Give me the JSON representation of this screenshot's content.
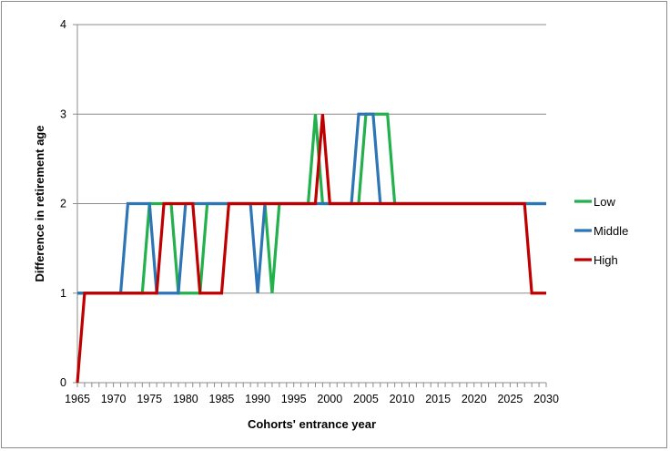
{
  "chart_data": {
    "type": "line",
    "xlabel": "Cohorts' entrance year",
    "ylabel": "Difference in retirement age",
    "xlim": [
      1965,
      2030
    ],
    "ylim": [
      0,
      4
    ],
    "x_ticks": [
      1965,
      1970,
      1975,
      1980,
      1985,
      1990,
      1995,
      2000,
      2005,
      2010,
      2015,
      2020,
      2025,
      2030
    ],
    "y_ticks": [
      0,
      1,
      2,
      3,
      4
    ],
    "grid": "horizontal",
    "legend_position": "right",
    "series": [
      {
        "name": "Low",
        "color": "#22b14c",
        "x": [
          1965,
          1966,
          1967,
          1968,
          1969,
          1970,
          1971,
          1972,
          1973,
          1974,
          1975,
          1976,
          1977,
          1978,
          1979,
          1980,
          1981,
          1982,
          1983,
          1984,
          1985,
          1986,
          1987,
          1988,
          1989,
          1990,
          1991,
          1992,
          1993,
          1994,
          1995,
          1996,
          1997,
          1998,
          1999,
          2000,
          2001,
          2002,
          2003,
          2004,
          2005,
          2006,
          2007,
          2008,
          2009,
          2010,
          2011,
          2012,
          2013,
          2014,
          2015,
          2016,
          2017,
          2018,
          2019,
          2020,
          2021,
          2022,
          2023,
          2024,
          2025,
          2026,
          2027,
          2028,
          2029,
          2030
        ],
        "y": [
          1,
          1,
          1,
          1,
          1,
          1,
          1,
          1,
          1,
          1,
          2,
          2,
          2,
          2,
          1,
          1,
          1,
          1,
          2,
          2,
          2,
          2,
          2,
          2,
          2,
          2,
          2,
          1,
          2,
          2,
          2,
          2,
          2,
          3,
          2,
          2,
          2,
          2,
          2,
          2,
          3,
          3,
          3,
          3,
          2,
          2,
          2,
          2,
          2,
          2,
          2,
          2,
          2,
          2,
          2,
          2,
          2,
          2,
          2,
          2,
          2,
          2,
          2,
          2,
          2,
          2
        ]
      },
      {
        "name": "Middle",
        "color": "#2e75b6",
        "x": [
          1965,
          1966,
          1967,
          1968,
          1969,
          1970,
          1971,
          1972,
          1973,
          1974,
          1975,
          1976,
          1977,
          1978,
          1979,
          1980,
          1981,
          1982,
          1983,
          1984,
          1985,
          1986,
          1987,
          1988,
          1989,
          1990,
          1991,
          1992,
          1993,
          1994,
          1995,
          1996,
          1997,
          1998,
          1999,
          2000,
          2001,
          2002,
          2003,
          2004,
          2005,
          2006,
          2007,
          2008,
          2009,
          2010,
          2011,
          2012,
          2013,
          2014,
          2015,
          2016,
          2017,
          2018,
          2019,
          2020,
          2021,
          2022,
          2023,
          2024,
          2025,
          2026,
          2027,
          2028,
          2029,
          2030
        ],
        "y": [
          1,
          1,
          1,
          1,
          1,
          1,
          1,
          2,
          2,
          2,
          2,
          1,
          1,
          1,
          1,
          2,
          2,
          2,
          2,
          2,
          2,
          2,
          2,
          2,
          2,
          1,
          2,
          2,
          2,
          2,
          2,
          2,
          2,
          2,
          2,
          2,
          2,
          2,
          2,
          3,
          3,
          3,
          2,
          2,
          2,
          2,
          2,
          2,
          2,
          2,
          2,
          2,
          2,
          2,
          2,
          2,
          2,
          2,
          2,
          2,
          2,
          2,
          2,
          2,
          2,
          2
        ]
      },
      {
        "name": "High",
        "color": "#c00000",
        "x": [
          1965,
          1966,
          1967,
          1968,
          1969,
          1970,
          1971,
          1972,
          1973,
          1974,
          1975,
          1976,
          1977,
          1978,
          1979,
          1980,
          1981,
          1982,
          1983,
          1984,
          1985,
          1986,
          1987,
          1988,
          1989,
          1990,
          1991,
          1992,
          1993,
          1994,
          1995,
          1996,
          1997,
          1998,
          1999,
          2000,
          2001,
          2002,
          2003,
          2004,
          2005,
          2006,
          2007,
          2008,
          2009,
          2010,
          2011,
          2012,
          2013,
          2014,
          2015,
          2016,
          2017,
          2018,
          2019,
          2020,
          2021,
          2022,
          2023,
          2024,
          2025,
          2026,
          2027,
          2028,
          2029,
          2030
        ],
        "y": [
          0,
          1,
          1,
          1,
          1,
          1,
          1,
          1,
          1,
          1,
          1,
          1,
          2,
          2,
          2,
          2,
          2,
          1,
          1,
          1,
          1,
          2,
          2,
          2,
          2,
          2,
          2,
          2,
          2,
          2,
          2,
          2,
          2,
          2,
          3,
          2,
          2,
          2,
          2,
          2,
          2,
          2,
          2,
          2,
          2,
          2,
          2,
          2,
          2,
          2,
          2,
          2,
          2,
          2,
          2,
          2,
          2,
          2,
          2,
          2,
          2,
          2,
          2,
          1,
          1,
          1
        ]
      }
    ]
  }
}
